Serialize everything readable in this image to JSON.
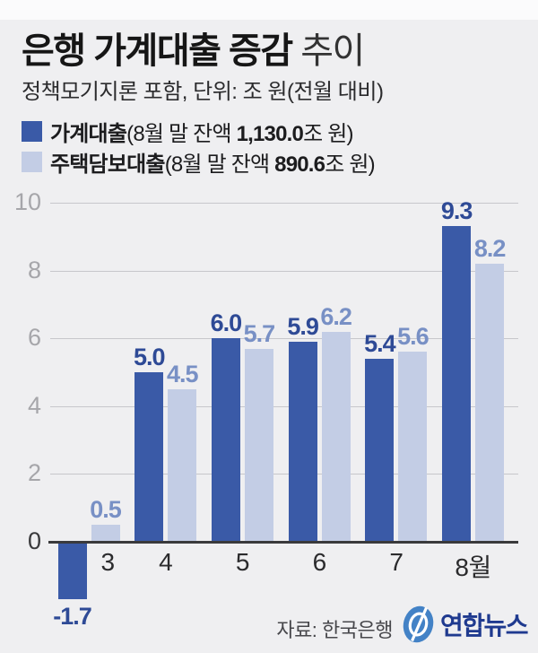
{
  "header": {
    "title_bold": "은행 가계대출 증감",
    "title_light": " 추이",
    "subtitle": "정책모기지론 포함, 단위: 조 원(전월 대비)"
  },
  "legend": [
    {
      "name": "가계대출",
      "balance_pre": "(8월 말 잔액 ",
      "balance_value": "1,130.0",
      "balance_post": "조 원)",
      "color": "#3a5aa7"
    },
    {
      "name": "주택담보대출",
      "balance_pre": "(8월 말 잔액 ",
      "balance_value": "890.6",
      "balance_post": "조 원)",
      "color": "#c3cde5"
    }
  ],
  "chart_data": {
    "type": "bar",
    "title": "은행 가계대출 증감 추이",
    "subtitle": "정책모기지론 포함, 단위: 조 원(전월 대비)",
    "categories": [
      "3",
      "4",
      "5",
      "6",
      "7",
      "8월"
    ],
    "series": [
      {
        "name": "가계대출",
        "color": "#3a5aa7",
        "label_color": "#2e4a96",
        "values": [
          -1.7,
          5.0,
          6.0,
          5.9,
          5.4,
          9.3
        ]
      },
      {
        "name": "주택담보대출",
        "color": "#c3cde5",
        "label_color": "#7890c5",
        "values": [
          0.5,
          4.5,
          5.7,
          6.2,
          5.6,
          8.2
        ]
      }
    ],
    "yticks": [
      0,
      2,
      4,
      6,
      8,
      10
    ],
    "ylim": [
      -2.2,
      10.5
    ],
    "grid": true,
    "legend_position": "top",
    "value_labels": true
  },
  "footer": {
    "source": "자료: 한국은행",
    "brand": "연합뉴스"
  },
  "colors": {
    "background": "#efeff1",
    "grid": "#c7c7cb",
    "axis": "#3a3a3c",
    "tick_label": "#a6a6aa",
    "logo_blue": "#4382c6",
    "logo_text": "#1f3a8f"
  }
}
